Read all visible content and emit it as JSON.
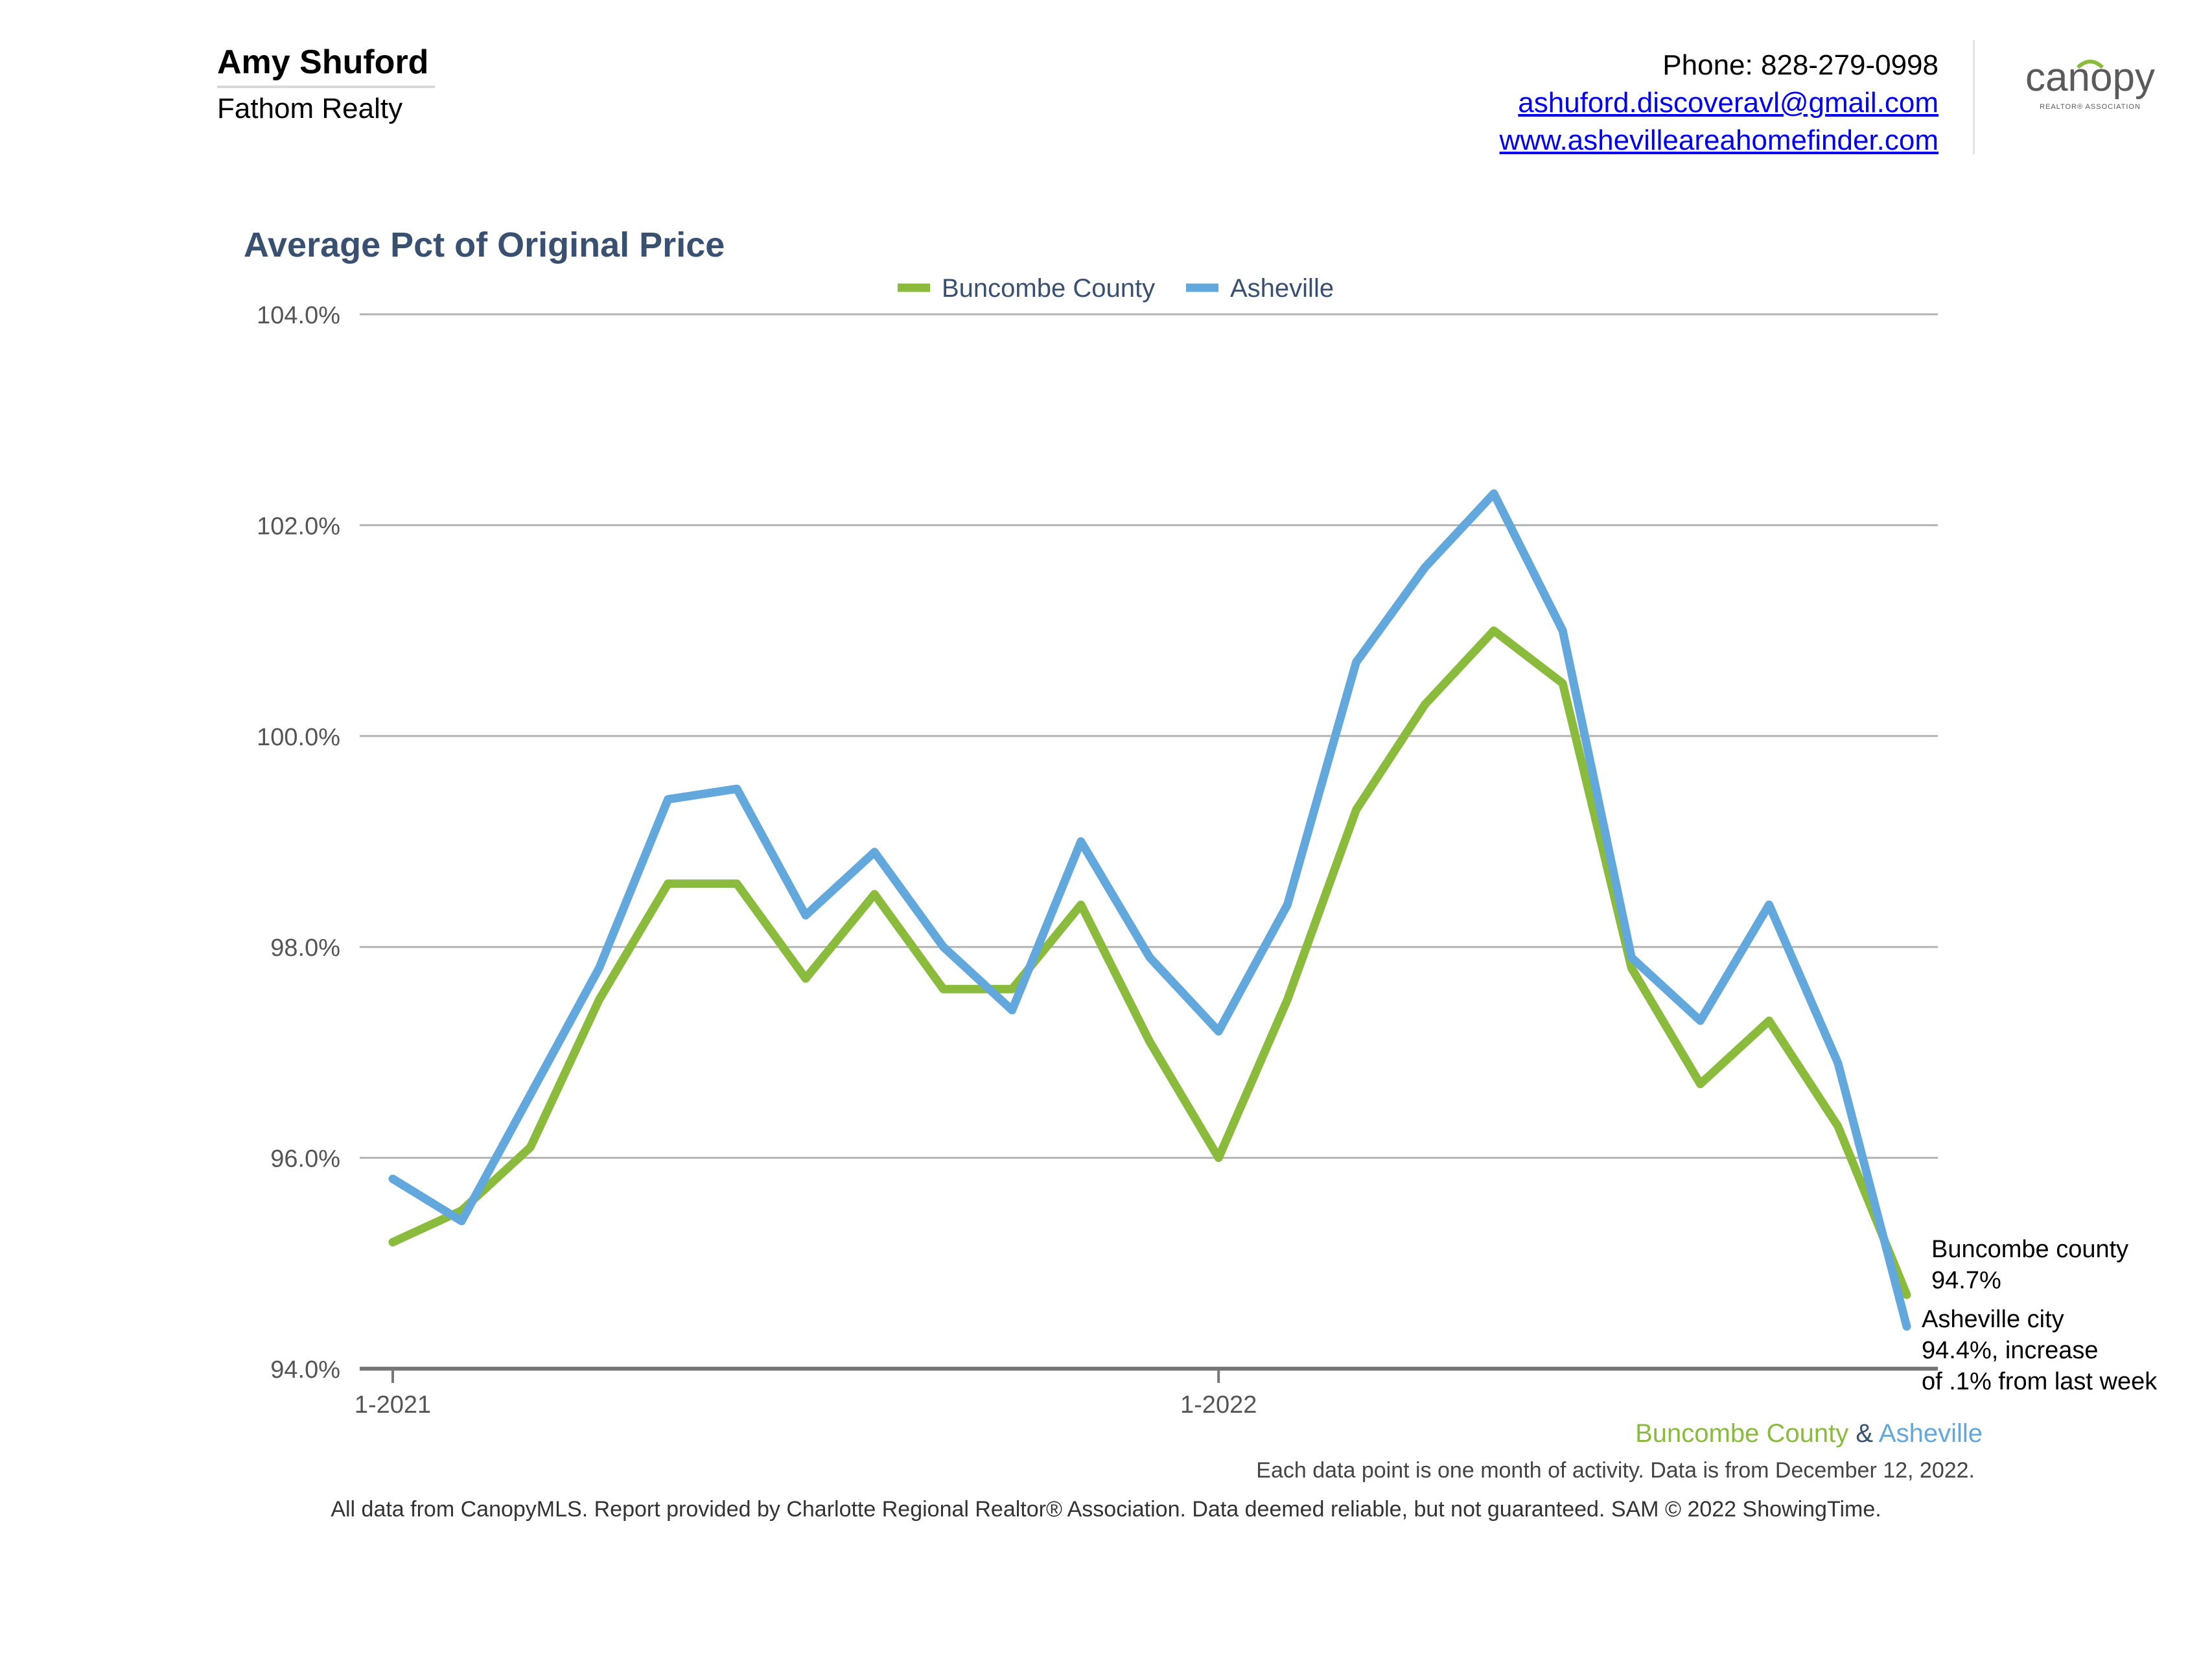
{
  "header": {
    "agent_name": "Amy Shuford",
    "company": "Fathom Realty",
    "phone": "Phone: 828-279-0998",
    "email": "ashuford.discoveravl@gmail.com",
    "website": "www.ashevilleareahomefinder.com",
    "logo_text": "canopy",
    "logo_subtext": "REALTOR® ASSOCIATION"
  },
  "chart_data": {
    "type": "line",
    "title": "Average Pct of Original Price",
    "xlabel": "",
    "ylabel": "",
    "ylim": [
      94,
      104
    ],
    "yticks": [
      94,
      96,
      98,
      100,
      102,
      104
    ],
    "ytick_labels": [
      "94.0%",
      "96.0%",
      "98.0%",
      "100.0%",
      "102.0%",
      "104.0%"
    ],
    "x": [
      "1-2021",
      "2-2021",
      "3-2021",
      "4-2021",
      "5-2021",
      "6-2021",
      "7-2021",
      "8-2021",
      "9-2021",
      "10-2021",
      "11-2021",
      "12-2021",
      "1-2022",
      "2-2022",
      "3-2022",
      "4-2022",
      "5-2022",
      "6-2022",
      "7-2022",
      "8-2022",
      "9-2022",
      "10-2022",
      "11-2022"
    ],
    "xtick_labels": [
      {
        "index": 0,
        "label": "1-2021"
      },
      {
        "index": 12,
        "label": "1-2022"
      }
    ],
    "legend_position": "top-center",
    "grid": true,
    "series": [
      {
        "name": "Buncombe County",
        "color": "#8bbb3c",
        "values": [
          95.2,
          95.5,
          96.1,
          97.5,
          98.6,
          98.6,
          97.7,
          98.5,
          97.6,
          97.6,
          98.4,
          97.1,
          96.0,
          97.5,
          99.3,
          100.3,
          101.0,
          100.5,
          97.8,
          96.7,
          97.3,
          96.3,
          94.7
        ]
      },
      {
        "name": "Asheville",
        "color": "#62a8dc",
        "values": [
          95.8,
          95.4,
          96.6,
          97.8,
          99.4,
          99.5,
          98.3,
          98.9,
          98.0,
          97.4,
          99.0,
          97.9,
          97.2,
          98.4,
          100.7,
          101.6,
          102.3,
          101.0,
          97.9,
          97.3,
          98.4,
          96.9,
          94.4
        ]
      }
    ],
    "annotations": [
      {
        "lines": [
          "Buncombe county",
          "94.7%"
        ]
      },
      {
        "lines": [
          "Asheville city",
          "94.4%, increase",
          "of .1% from last week"
        ]
      }
    ]
  },
  "footer": {
    "legend_series1": "Buncombe County",
    "legend_amp": "&",
    "legend_series2": "Asheville",
    "series1_color": "#8bbb3c",
    "series2_color": "#62a8dc",
    "amp_color": "#3a5070",
    "data_note": "Each data point is one month of activity. Data is from December 12, 2022.",
    "disclaimer": "All data from CanopyMLS. Report provided by Charlotte Regional Realtor® Association. Data deemed reliable, but not guaranteed. SAM © 2022 ShowingTime."
  }
}
